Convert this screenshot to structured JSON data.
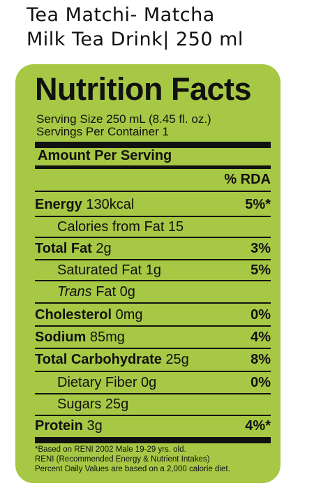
{
  "product": {
    "title_line1": "Tea Matchi- Matcha",
    "title_line2": "Milk Tea Drink| 250 ml"
  },
  "label": {
    "title": "Nutrition Facts",
    "serving_size": "Serving Size 250 mL (8.45 fl. oz.)",
    "servings_per_container": "Servings Per Container 1",
    "amount_per_serving": "Amount Per Serving",
    "rda_header": "% RDA",
    "panel_color": "#a7c844",
    "rows": [
      {
        "name": "Energy",
        "value": " 130kcal",
        "pct": "5%*"
      },
      {
        "name": "",
        "value": "Calories from Fat 15",
        "pct": ""
      },
      {
        "name": "Total Fat",
        "value": " 2g",
        "pct": "3%"
      },
      {
        "name": "",
        "value": "Saturated Fat 1g",
        "pct": "5%"
      },
      {
        "name": "Trans",
        "value": " Fat 0g",
        "pct": ""
      },
      {
        "name": "Cholesterol",
        "value": " 0mg",
        "pct": "0%"
      },
      {
        "name": "Sodium",
        "value": " 85mg",
        "pct": "4%"
      },
      {
        "name": "Total Carbohydrate",
        "value": " 25g",
        "pct": "8%"
      },
      {
        "name": "",
        "value": "Dietary Fiber 0g",
        "pct": "0%"
      },
      {
        "name": "",
        "value": "Sugars 25g",
        "pct": ""
      },
      {
        "name": "Protein",
        "value": " 3g",
        "pct": "4%*"
      }
    ],
    "footnotes": [
      "*Based on RENI 2002 Male 19-29 yrs. old.",
      "RENI (Recommended Energy & Nutrient Intakes)",
      "Percent Daily Values are based on a 2,000 calorie diet."
    ]
  }
}
